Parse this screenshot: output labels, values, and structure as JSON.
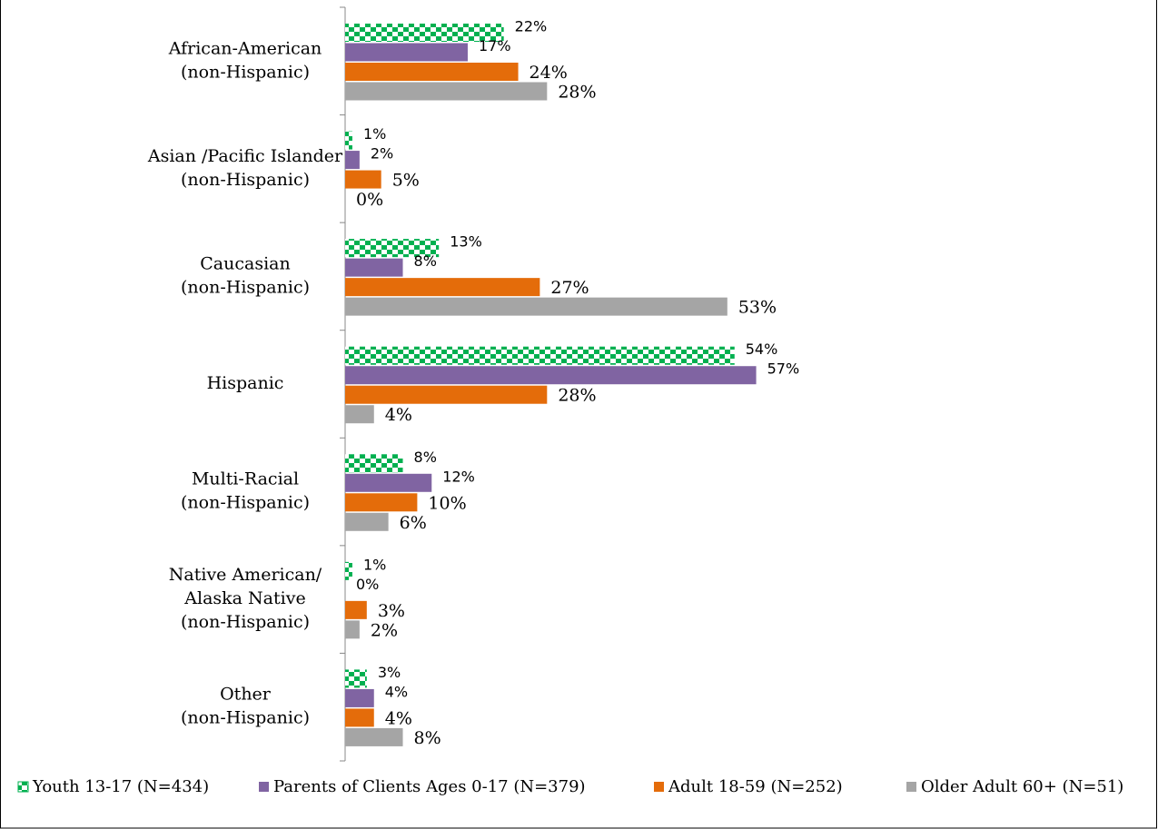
{
  "chart_data": {
    "type": "hbar",
    "categories": [
      [
        "African-American",
        "(non-Hispanic)"
      ],
      [
        "Asian /Pacific Islander",
        "(non-Hispanic)"
      ],
      [
        "Caucasian",
        "(non-Hispanic)"
      ],
      [
        "Hispanic"
      ],
      [
        "Multi-Racial",
        "(non-Hispanic)"
      ],
      [
        "Native American/",
        "Alaska Native",
        "(non-Hispanic)"
      ],
      [
        "Other",
        "(non-Hispanic)"
      ]
    ],
    "xlim": [
      0,
      100
    ],
    "legend": "bottom",
    "series": [
      {
        "name": "Youth 13-17 (N=434)",
        "color": "#00b050",
        "pattern": "checker",
        "values": [
          22,
          1,
          13,
          54,
          8,
          1,
          3
        ],
        "value_labels": [
          "22%",
          "1%",
          "13%",
          "54%",
          "8%",
          "1%",
          "3%"
        ]
      },
      {
        "name": "Parents of Clients Ages 0-17 (N=379)",
        "color": "#8064a2",
        "values": [
          17,
          2,
          8,
          57,
          12,
          0,
          4
        ],
        "value_labels": [
          "17%",
          "2%",
          "8%",
          "57%",
          "12%",
          "0%",
          "4%"
        ]
      },
      {
        "name": "Adult 18-59 (N=252)",
        "color": "#e46c0a",
        "values": [
          24,
          5,
          27,
          28,
          10,
          3,
          4
        ],
        "value_labels": [
          "24%",
          "5%",
          "27%",
          "28%",
          "10%",
          "3%",
          "4%"
        ]
      },
      {
        "name": "Older Adult 60+ (N=51)",
        "color": "#a5a5a5",
        "values": [
          28,
          0,
          53,
          4,
          6,
          2,
          8
        ],
        "value_labels": [
          "28%",
          "0%",
          "53%",
          "4%",
          "6%",
          "2%",
          "8%"
        ]
      }
    ]
  }
}
